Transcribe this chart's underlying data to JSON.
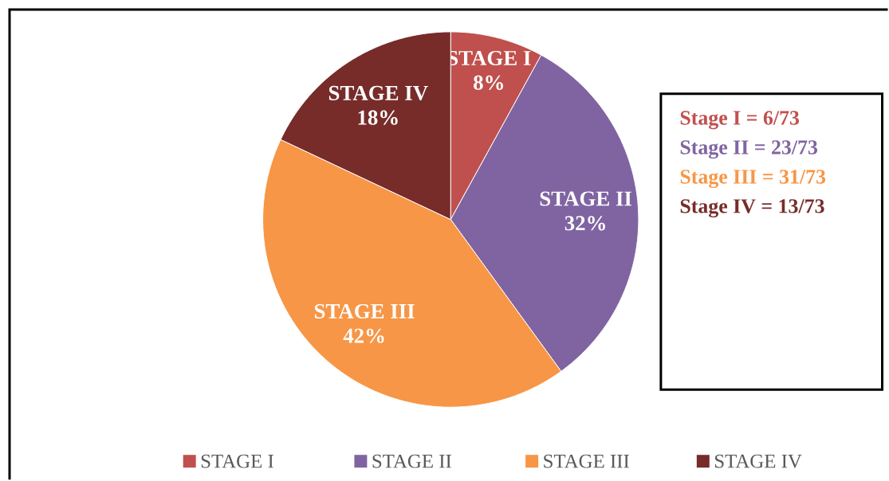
{
  "chart_data": {
    "type": "pie",
    "categories": [
      "STAGE I",
      "STAGE II",
      "STAGE III",
      "STAGE IV"
    ],
    "values": [
      8,
      32,
      42,
      18
    ],
    "colors": [
      "#c0504d",
      "#8064a2",
      "#f79646",
      "#772c2a"
    ],
    "value_labels": [
      "8%",
      "32%",
      "42%",
      "18%"
    ],
    "legend": "bottom",
    "annotations": [
      "Stage I = 6/73",
      "Stage II = 23/73",
      "Stage III = 31/73",
      "Stage IV = 13/73"
    ]
  }
}
